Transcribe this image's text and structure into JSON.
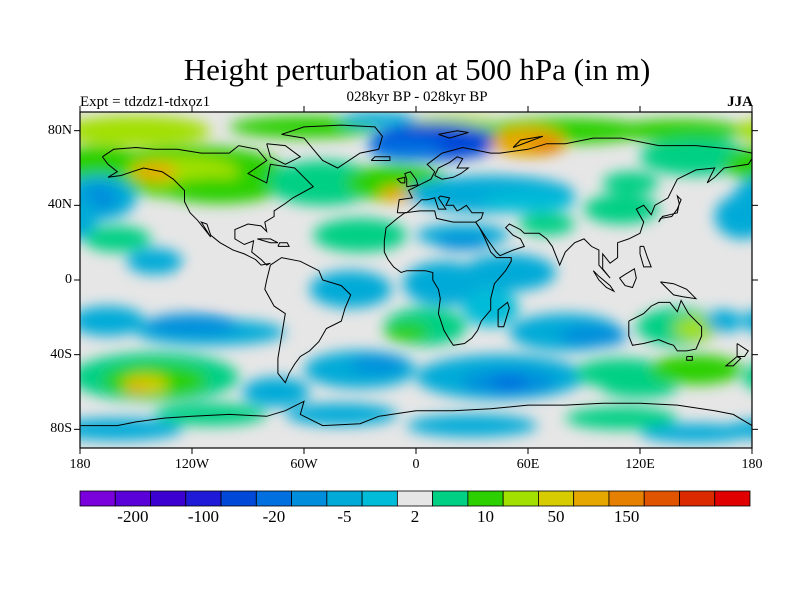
{
  "title": "Height perturbation at 500 hPa (in m)",
  "subtitle": "028kyr BP - 028kyr BP",
  "left_label": "Expt = tdzdz1-tdxoz1",
  "right_label": "JJA",
  "map": {
    "field": "500 hPa height perturbation",
    "units": "m",
    "lat_ticks": [
      "80N",
      "40N",
      "0",
      "40S",
      "80S"
    ],
    "lon_ticks": [
      "180",
      "120W",
      "60W",
      "0",
      "60E",
      "120E",
      "180"
    ],
    "background_color": "#e6e6e6"
  },
  "colorbar": {
    "colors": [
      "#7a00dc",
      "#5a00d8",
      "#3c00d0",
      "#1f1ad8",
      "#0048d8",
      "#0070e0",
      "#008edc",
      "#00aad8",
      "#00bcd8",
      "#e6e6e6",
      "#00d084",
      "#2cd000",
      "#a2e000",
      "#d6cc00",
      "#e6a800",
      "#e68000",
      "#e05400",
      "#dc2a00",
      "#e00000"
    ],
    "labels": [
      "-200",
      "-100",
      "-20",
      "-5",
      "2",
      "10",
      "50",
      "150"
    ]
  }
}
